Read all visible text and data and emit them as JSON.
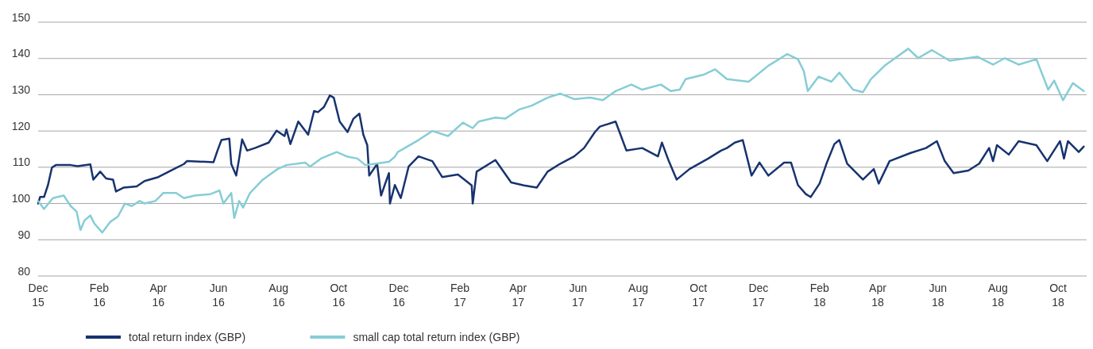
{
  "chart_data": {
    "type": "line",
    "xlim": [
      "2015-12-01",
      "2018-10-30"
    ],
    "xticks": [
      {
        "value": "2015-12-01",
        "label": "Dec 15"
      },
      {
        "value": "2016-02-01",
        "label": "Feb 16"
      },
      {
        "value": "2016-04-01",
        "label": "Apr 16"
      },
      {
        "value": "2016-06-01",
        "label": "Jun 16"
      },
      {
        "value": "2016-08-01",
        "label": "Aug 16"
      },
      {
        "value": "2016-10-01",
        "label": "Oct 16"
      },
      {
        "value": "2016-12-01",
        "label": "Dec 16"
      },
      {
        "value": "2017-02-01",
        "label": "Feb 17"
      },
      {
        "value": "2017-04-01",
        "label": "Apr 17"
      },
      {
        "value": "2017-06-01",
        "label": "Jun 17"
      },
      {
        "value": "2017-08-01",
        "label": "Aug 17"
      },
      {
        "value": "2017-10-01",
        "label": "Oct 17"
      },
      {
        "value": "2017-12-01",
        "label": "Dec 17"
      },
      {
        "value": "2018-02-01",
        "label": "Feb 18"
      },
      {
        "value": "2018-04-01",
        "label": "Apr 18"
      },
      {
        "value": "2018-06-01",
        "label": "Jun 18"
      },
      {
        "value": "2018-08-01",
        "label": "Aug 18"
      },
      {
        "value": "2018-10-01",
        "label": "Oct 18"
      }
    ],
    "ylim": [
      80,
      150
    ],
    "yticks": [
      80,
      90,
      100,
      110,
      120,
      130,
      140,
      150
    ],
    "grid": "y",
    "legend": "bottom",
    "line_style": "solid",
    "series": [
      {
        "name": "total return index (GBP)",
        "color": "#17336f",
        "x": [
          "2015-12-01",
          "2015-12-03",
          "2015-12-07",
          "2015-12-11",
          "2015-12-15",
          "2015-12-19",
          "2016-01-03",
          "2016-01-10",
          "2016-01-23",
          "2016-01-26",
          "2016-02-02",
          "2016-02-08",
          "2016-02-15",
          "2016-02-18",
          "2016-02-26",
          "2016-03-10",
          "2016-03-18",
          "2016-04-01",
          "2016-04-14",
          "2016-04-27",
          "2016-04-30",
          "2016-05-27",
          "2016-05-31",
          "2016-06-04",
          "2016-06-12",
          "2016-06-14",
          "2016-06-19",
          "2016-06-22",
          "2016-06-25",
          "2016-06-30",
          "2016-07-08",
          "2016-07-22",
          "2016-07-30",
          "2016-08-07",
          "2016-08-09",
          "2016-08-13",
          "2016-08-21",
          "2016-08-31",
          "2016-09-06",
          "2016-09-10",
          "2016-09-16",
          "2016-09-22",
          "2016-09-26",
          "2016-10-02",
          "2016-10-10",
          "2016-10-16",
          "2016-10-22",
          "2016-10-26",
          "2016-10-30",
          "2016-11-01",
          "2016-11-09",
          "2016-11-13",
          "2016-11-21",
          "2016-11-22",
          "2016-11-27",
          "2016-12-03",
          "2016-12-11",
          "2016-12-21",
          "2017-01-04",
          "2017-01-14",
          "2017-01-30",
          "2017-02-13",
          "2017-02-14",
          "2017-02-18",
          "2017-03-09",
          "2017-03-25",
          "2017-04-07",
          "2017-04-20",
          "2017-05-01",
          "2017-05-14",
          "2017-05-28",
          "2017-06-07",
          "2017-06-18",
          "2017-06-23",
          "2017-07-09",
          "2017-07-20",
          "2017-08-05",
          "2017-08-21",
          "2017-08-25",
          "2017-09-01",
          "2017-09-09",
          "2017-09-22",
          "2017-10-11",
          "2017-10-24",
          "2017-10-30",
          "2017-11-07",
          "2017-11-15",
          "2017-11-24",
          "2017-12-02",
          "2017-12-11",
          "2017-12-27",
          "2018-01-03",
          "2018-01-10",
          "2018-01-18",
          "2018-01-23",
          "2018-02-01",
          "2018-02-08",
          "2018-02-16",
          "2018-02-21",
          "2018-03-01",
          "2018-03-17",
          "2018-03-28",
          "2018-04-02",
          "2018-04-13",
          "2018-05-04",
          "2018-05-20",
          "2018-05-31",
          "2018-06-08",
          "2018-06-17",
          "2018-07-02",
          "2018-07-13",
          "2018-07-23",
          "2018-07-27",
          "2018-07-31",
          "2018-08-12",
          "2018-08-22",
          "2018-09-09",
          "2018-09-20",
          "2018-10-03",
          "2018-10-07",
          "2018-10-11",
          "2018-10-22",
          "2018-10-27"
        ],
        "values": [
          100,
          101.8,
          101.8,
          105.1,
          109.9,
          110.6,
          110.6,
          110.3,
          110.8,
          106.6,
          108.8,
          106.9,
          106.6,
          103.3,
          104.4,
          104.7,
          106.2,
          107.3,
          109.1,
          110.9,
          111.7,
          111.4,
          114.6,
          117.5,
          117.9,
          110.9,
          107.7,
          112.4,
          117.7,
          114.6,
          115.3,
          116.8,
          120.1,
          118.6,
          120.4,
          116.4,
          122.6,
          119,
          125.5,
          125.2,
          126.6,
          129.8,
          129.2,
          122.6,
          119.7,
          123.4,
          124.8,
          119,
          116.1,
          107.7,
          110.9,
          102.2,
          108.4,
          100,
          105.1,
          101.5,
          110.2,
          113,
          111.7,
          107.3,
          108,
          105,
          100,
          108.8,
          112,
          105.8,
          105,
          104.4,
          108.8,
          111,
          113,
          115.3,
          119.7,
          121.2,
          122.6,
          114.6,
          115.3,
          113,
          116.8,
          111.7,
          106.6,
          109.5,
          112.4,
          114.6,
          115.3,
          116.8,
          117.5,
          107.7,
          111.3,
          107.7,
          111.3,
          111.3,
          105.1,
          102.6,
          101.8,
          105.5,
          111,
          116.4,
          117.5,
          111,
          106.6,
          109.5,
          105.5,
          111.7,
          113.9,
          115.3,
          117.2,
          111.7,
          108.4,
          109.1,
          111,
          115.3,
          111.7,
          116.1,
          113.5,
          117.2,
          116.1,
          111.7,
          117.2,
          112.4,
          117.2,
          114.2,
          115.7
        ]
      },
      {
        "name": "small cap total return index (GBP)",
        "color": "#86cdd6",
        "x": [
          "2015-12-01",
          "2015-12-07",
          "2015-12-16",
          "2015-12-27",
          "2016-01-03",
          "2016-01-09",
          "2016-01-13",
          "2016-01-17",
          "2016-01-23",
          "2016-01-27",
          "2016-02-04",
          "2016-02-12",
          "2016-02-20",
          "2016-02-27",
          "2016-03-05",
          "2016-03-13",
          "2016-03-18",
          "2016-03-29",
          "2016-04-06",
          "2016-04-19",
          "2016-04-27",
          "2016-05-08",
          "2016-05-24",
          "2016-06-02",
          "2016-06-06",
          "2016-06-14",
          "2016-06-17",
          "2016-06-22",
          "2016-06-26",
          "2016-07-03",
          "2016-07-16",
          "2016-07-31",
          "2016-08-09",
          "2016-08-28",
          "2016-09-02",
          "2016-09-13",
          "2016-09-29",
          "2016-10-10",
          "2016-10-20",
          "2016-10-28",
          "2016-11-05",
          "2016-11-21",
          "2016-11-27",
          "2016-11-30",
          "2016-12-21",
          "2017-01-04",
          "2017-01-20",
          "2017-02-04",
          "2017-02-14",
          "2017-02-20",
          "2017-03-09",
          "2017-03-19",
          "2017-04-02",
          "2017-04-15",
          "2017-05-01",
          "2017-05-14",
          "2017-05-28",
          "2017-06-13",
          "2017-06-26",
          "2017-07-09",
          "2017-07-25",
          "2017-08-05",
          "2017-08-24",
          "2017-09-03",
          "2017-09-12",
          "2017-09-18",
          "2017-10-06",
          "2017-10-18",
          "2017-10-30",
          "2017-11-21",
          "2017-12-11",
          "2017-12-30",
          "2018-01-10",
          "2018-01-16",
          "2018-01-20",
          "2018-01-31",
          "2018-02-13",
          "2018-02-21",
          "2018-03-07",
          "2018-03-17",
          "2018-03-25",
          "2018-04-08",
          "2018-05-02",
          "2018-05-12",
          "2018-05-26",
          "2018-06-13",
          "2018-07-11",
          "2018-07-27",
          "2018-08-08",
          "2018-08-22",
          "2018-09-09",
          "2018-09-21",
          "2018-09-27",
          "2018-10-06",
          "2018-10-16",
          "2018-10-27"
        ],
        "values": [
          100.7,
          98.5,
          101.5,
          102.2,
          99.3,
          97.8,
          92.7,
          95.3,
          96.7,
          94.5,
          92,
          94.9,
          96.4,
          100,
          99.3,
          100.7,
          100,
          100.7,
          102.9,
          102.9,
          101.5,
          102.2,
          102.6,
          103.6,
          100,
          102.9,
          96,
          100.7,
          98.9,
          102.9,
          106.6,
          109.5,
          110.6,
          111.3,
          110.2,
          112.4,
          114.2,
          112.9,
          112.4,
          110.6,
          110.9,
          111.5,
          112.9,
          114.2,
          117.5,
          120,
          118.6,
          122.3,
          120.8,
          122.6,
          123.7,
          123.4,
          125.9,
          127,
          129.2,
          130.3,
          128.8,
          129.2,
          128.5,
          131,
          132.8,
          131.4,
          132.8,
          131,
          131.4,
          134.3,
          135.5,
          137,
          134.3,
          133.6,
          138,
          141.2,
          139.8,
          136.5,
          131,
          135,
          133.6,
          136.1,
          131.4,
          130.7,
          134.3,
          138,
          142.7,
          140.1,
          142.3,
          139.4,
          140.5,
          138.3,
          140.1,
          138.3,
          139.8,
          131.4,
          133.9,
          128.5,
          133.2,
          131
        ]
      }
    ]
  }
}
